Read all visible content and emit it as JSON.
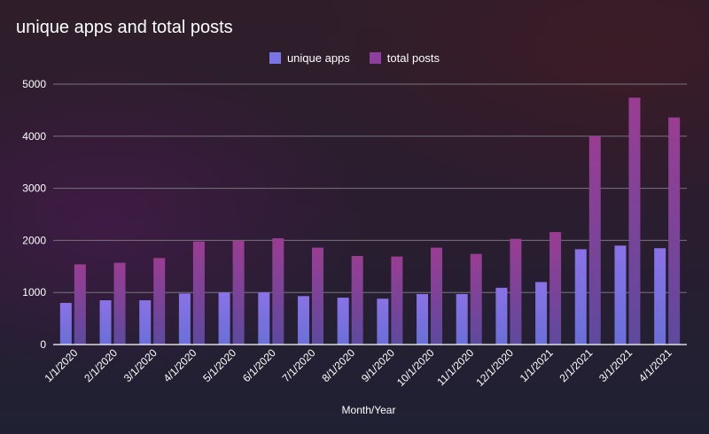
{
  "chart_data": {
    "type": "bar",
    "title": "unique apps and total posts",
    "xlabel": "Month/Year",
    "ylabel": "",
    "ylim": [
      0,
      5000
    ],
    "yticks": [
      0,
      1000,
      2000,
      3000,
      4000,
      5000
    ],
    "grid": true,
    "legend_position": "top",
    "categories": [
      "1/1/2020",
      "2/1/2020",
      "3/1/2020",
      "4/1/2020",
      "5/1/2020",
      "6/1/2020",
      "7/1/2020",
      "8/1/2020",
      "9/1/2020",
      "10/1/2020",
      "11/1/2020",
      "12/1/2020",
      "1/1/2021",
      "2/1/2021",
      "3/1/2021",
      "4/1/2021"
    ],
    "series": [
      {
        "name": "unique apps",
        "color": "#7b74e4",
        "values": [
          800,
          850,
          850,
          980,
          1000,
          1000,
          930,
          900,
          880,
          970,
          970,
          1090,
          1200,
          1830,
          1900,
          1850
        ]
      },
      {
        "name": "total posts",
        "color": "#8c3f9c",
        "values": [
          1540,
          1570,
          1660,
          1980,
          1990,
          2040,
          1860,
          1700,
          1690,
          1860,
          1740,
          2030,
          2160,
          4000,
          4740,
          4360
        ]
      }
    ]
  }
}
